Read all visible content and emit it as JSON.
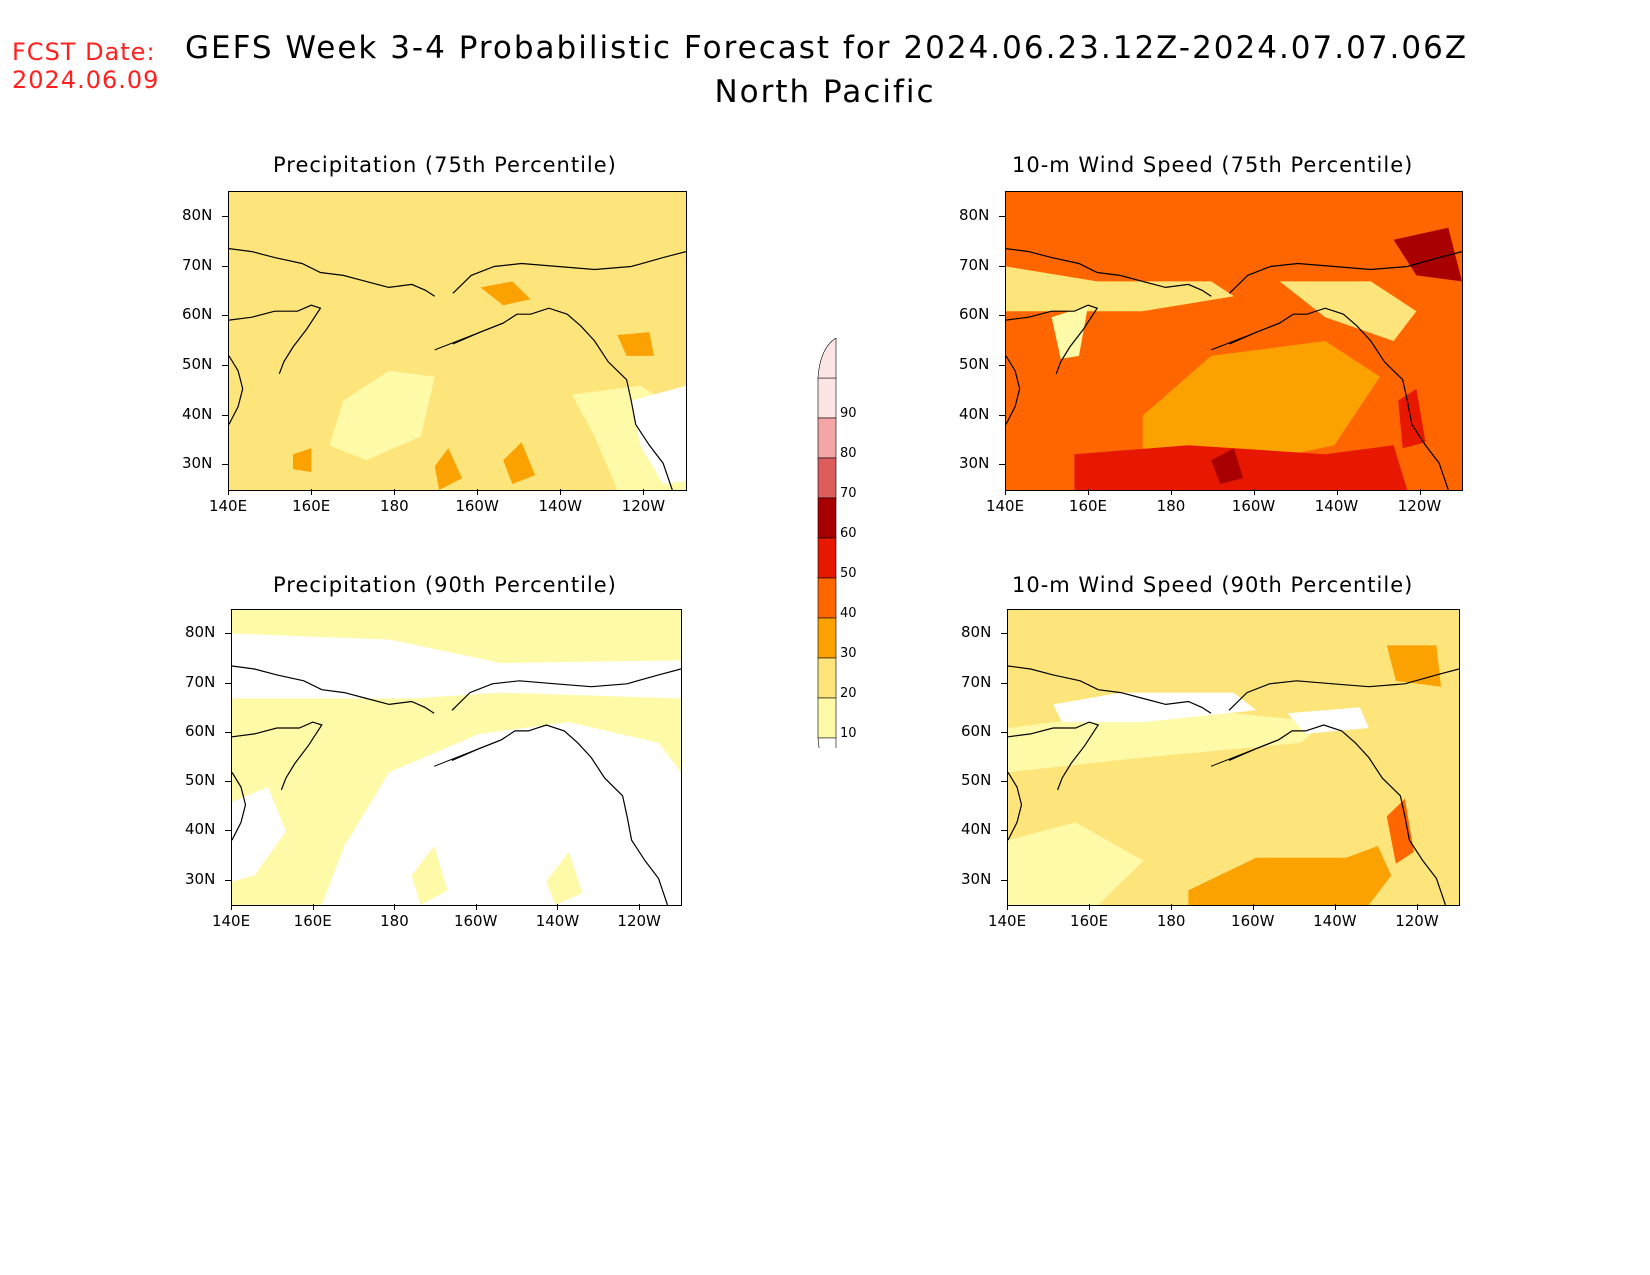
{
  "forecast_date": {
    "label": "FCST Date:",
    "value": "2024.06.09"
  },
  "title": {
    "line1": "GEFS Week 3-4 Probabilistic Forecast for 2024.06.23.12Z-2024.07.07.06Z",
    "line2": "North Pacific"
  },
  "axes": {
    "lat_labels": [
      "80N",
      "70N",
      "60N",
      "50N",
      "40N",
      "30N"
    ],
    "lon_labels": [
      "140E",
      "160E",
      "180",
      "160W",
      "140W",
      "120W"
    ]
  },
  "panels": [
    {
      "id": "precip75",
      "title": "Precipitation (75th Percentile)",
      "dominant_level": "20-30"
    },
    {
      "id": "wind75",
      "title": "10-m Wind Speed (75th Percentile)",
      "dominant_level": "40-50"
    },
    {
      "id": "precip90",
      "title": "Precipitation (90th Percentile)",
      "dominant_level": "10-20"
    },
    {
      "id": "wind90",
      "title": "10-m Wind Speed (90th Percentile)",
      "dominant_level": "20-30"
    }
  ],
  "colorbar": {
    "labels": [
      "10",
      "20",
      "30",
      "40",
      "50",
      "60",
      "70",
      "80",
      "90"
    ],
    "colors": [
      "#fffaa8",
      "#fde57c",
      "#fca200",
      "#ff6600",
      "#e81800",
      "#a80000",
      "#dd5d5d",
      "#f4a5a5",
      "#fde5e5"
    ]
  }
}
